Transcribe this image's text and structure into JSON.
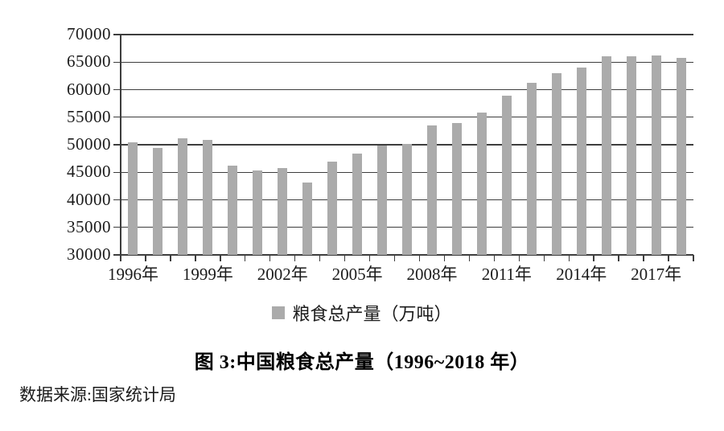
{
  "chart_data": {
    "type": "bar",
    "title": "图 3:中国粮食总产量（1996~2018 年）",
    "legend": "粮食总产量（万吨）",
    "source_note": "数据来源:国家统计局",
    "categories": [
      1996,
      1997,
      1998,
      1999,
      2000,
      2001,
      2002,
      2003,
      2004,
      2005,
      2006,
      2007,
      2008,
      2009,
      2010,
      2011,
      2012,
      2013,
      2014,
      2015,
      2016,
      2017,
      2018
    ],
    "values": [
      50454,
      49417,
      51230,
      50839,
      46218,
      45264,
      45706,
      43070,
      46947,
      48402,
      49804,
      50160,
      53434,
      53941,
      55911,
      58849,
      61223,
      63048,
      63965,
      66060,
      66044,
      66161,
      65789
    ],
    "ylim": [
      30000,
      70000
    ],
    "yticks": [
      30000,
      35000,
      40000,
      45000,
      50000,
      55000,
      60000,
      65000,
      70000
    ],
    "xtick_labels": [
      "1996年",
      "1999年",
      "2002年",
      "2005年",
      "2008年",
      "2011年",
      "2014年",
      "2017年"
    ],
    "xtick_label_indices": [
      0,
      3,
      6,
      9,
      12,
      15,
      18,
      21
    ],
    "grid": true,
    "legend_position": "bottom",
    "bar_color": "#ABABAB",
    "axis_color": "#3D3D3D",
    "text_color": "#1B1B1B"
  }
}
